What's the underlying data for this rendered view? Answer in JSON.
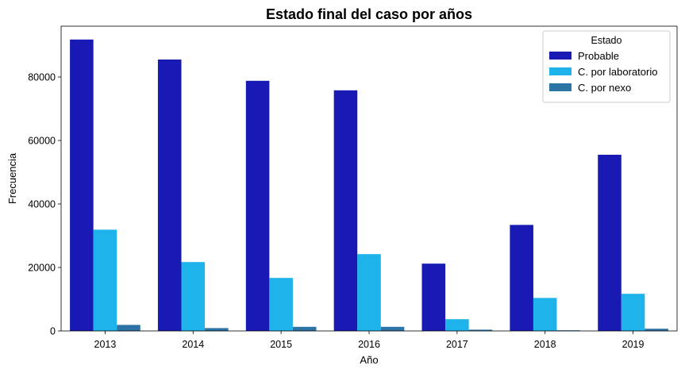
{
  "chart_data": {
    "type": "bar",
    "title": "Estado final del caso por años",
    "xlabel": "Año",
    "ylabel": "Frecuencia",
    "categories": [
      "2013",
      "2014",
      "2015",
      "2016",
      "2017",
      "2018",
      "2019"
    ],
    "series": [
      {
        "name": "Probable",
        "color": "#1919b4",
        "values": [
          91800,
          85500,
          78800,
          75800,
          21200,
          33400,
          55500
        ]
      },
      {
        "name": "C. por laboratorio",
        "color": "#1eb4eb",
        "values": [
          31900,
          21700,
          16700,
          24200,
          3700,
          10400,
          11700
        ]
      },
      {
        "name": "C. por nexo",
        "color": "#2c73a6",
        "values": [
          1900,
          900,
          1300,
          1300,
          400,
          200,
          700
        ]
      }
    ],
    "ylim": [
      0,
      96000
    ],
    "yticks": [
      0,
      20000,
      40000,
      60000,
      80000
    ],
    "legend": {
      "title": "Estado",
      "placement": "top-right"
    },
    "grid": false
  }
}
